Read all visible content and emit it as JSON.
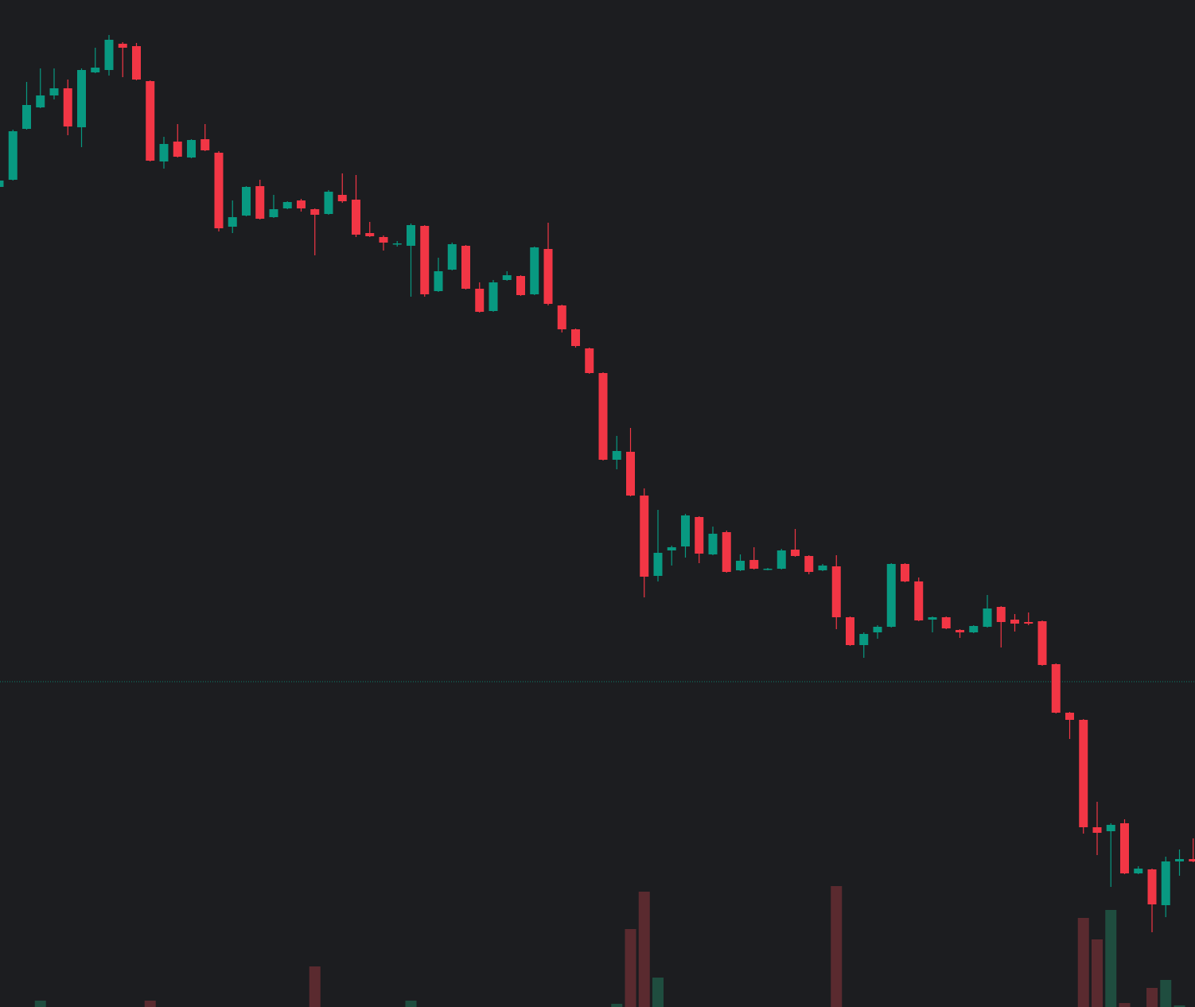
{
  "chart_data": {
    "type": "candlestick",
    "open": [
      1031,
      1040,
      1104,
      1131,
      1146,
      1155,
      1106,
      1175,
      1178,
      1211,
      1208,
      1164,
      1063,
      1088,
      1068,
      1091,
      1074,
      981,
      995,
      1032,
      993,
      1004,
      1014,
      1003,
      997,
      1021,
      1015,
      973,
      968,
      959,
      957,
      982,
      900,
      927,
      957,
      903,
      875,
      914,
      919,
      896,
      953,
      882,
      852,
      828,
      797,
      688,
      698,
      643,
      542,
      574,
      579,
      616,
      569,
      597,
      549,
      562,
      550,
      551,
      575,
      567,
      549,
      554,
      490,
      455,
      471,
      478,
      557,
      535,
      487,
      490,
      474,
      471,
      478,
      503,
      487,
      484,
      485,
      431,
      370,
      361,
      226,
      221,
      231,
      168,
      173,
      128,
      183,
      186
    ],
    "high": [
      1041,
      1103,
      1163,
      1180,
      1180,
      1166,
      1180,
      1206,
      1222,
      1213,
      1212,
      1165,
      1094,
      1110,
      1091,
      1110,
      1076,
      1014,
      1032,
      1040,
      1021,
      1013,
      1016,
      1004,
      1027,
      1048,
      1046,
      987,
      970,
      963,
      985,
      983,
      942,
      961,
      958,
      911,
      914,
      925,
      920,
      956,
      986,
      883,
      853,
      829,
      798,
      718,
      728,
      652,
      625,
      580,
      620,
      617,
      604,
      599,
      569,
      578,
      552,
      576,
      601,
      568,
      557,
      568,
      491,
      471,
      480,
      558,
      558,
      540,
      491,
      491,
      475,
      480,
      518,
      504,
      494,
      496,
      486,
      432,
      371,
      362,
      258,
      231,
      236,
      177,
      174,
      189,
      198,
      212
    ],
    "low": [
      1029,
      1039,
      1103,
      1130,
      1141,
      1096,
      1081,
      1174,
      1171,
      1169,
      1165,
      1063,
      1054,
      1068,
      1067,
      1076,
      975,
      973,
      994,
      990,
      992,
      1003,
      1000,
      945,
      996,
      1011,
      968,
      968,
      951,
      956,
      893,
      893,
      899,
      926,
      902,
      873,
      874,
      913,
      894,
      895,
      882,
      848,
      829,
      796,
      687,
      676,
      642,
      515,
      535,
      555,
      565,
      558,
      568,
      546,
      548,
      550,
      549,
      550,
      566,
      544,
      548,
      475,
      454,
      439,
      463,
      477,
      534,
      485,
      471,
      475,
      464,
      470,
      477,
      452,
      472,
      480,
      429,
      369,
      337,
      218,
      191,
      151,
      167,
      167,
      94,
      113,
      165,
      182
    ],
    "close": [
      1039,
      1101,
      1134,
      1146,
      1155,
      1107,
      1178,
      1181,
      1216,
      1206,
      1166,
      1064,
      1085,
      1069,
      1090,
      1077,
      979,
      993,
      1031,
      991,
      1003,
      1012,
      1004,
      996,
      1025,
      1013,
      971,
      969,
      961,
      960,
      983,
      896,
      925,
      959,
      903,
      874,
      911,
      920,
      895,
      955,
      884,
      852,
      831,
      797,
      688,
      699,
      643,
      541,
      571,
      578,
      618,
      570,
      595,
      547,
      561,
      551,
      551,
      574,
      567,
      547,
      555,
      490,
      455,
      469,
      478,
      557,
      535,
      486,
      490,
      476,
      471,
      479,
      501,
      484,
      482,
      482,
      430,
      370,
      361,
      226,
      219,
      229,
      168,
      174,
      129,
      183,
      186,
      183
    ],
    "volume": [
      0,
      0,
      0,
      8,
      0,
      0,
      0,
      0,
      0,
      0,
      0,
      8,
      0,
      0,
      0,
      0,
      0,
      0,
      0,
      0,
      0,
      0,
      0,
      51,
      0,
      0,
      0,
      0,
      0,
      0,
      8,
      0,
      0,
      0,
      0,
      0,
      0,
      0,
      0,
      0,
      0,
      0,
      0,
      0,
      0,
      4,
      98,
      145,
      37,
      0,
      0,
      0,
      0,
      0,
      0,
      0,
      0,
      0,
      0,
      0,
      0,
      152,
      0,
      0,
      0,
      0,
      0,
      0,
      0,
      0,
      0,
      0,
      0,
      0,
      0,
      0,
      0,
      0,
      0,
      112,
      85,
      122,
      5,
      0,
      24,
      34,
      2,
      0
    ],
    "ylim": [
      0,
      1266
    ],
    "vlim": [
      0,
      1266
    ],
    "price_line": 409,
    "up_color": "#089981",
    "down_color": "#f23645",
    "up_volume_color": "#1f4d3f",
    "down_volume_color": "#5a2a2f",
    "background": "#1c1d20"
  }
}
